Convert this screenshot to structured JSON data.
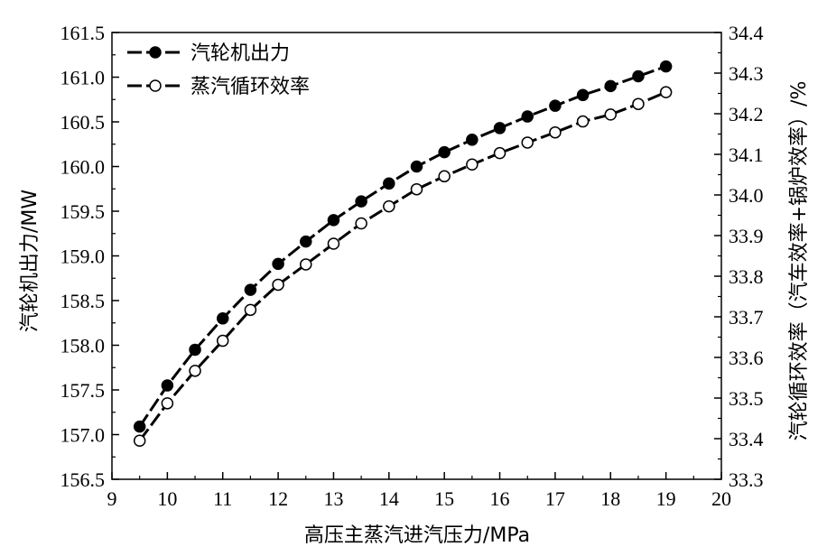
{
  "chart_data": {
    "type": "line",
    "xlabel": "高压主蒸汽进汽压力/MPa",
    "ylabel_left": "汽轮机出力/MW",
    "ylabel_right": "汽轮循环效率（汽车效率+锅炉效率）/%",
    "xlim": [
      9,
      20
    ],
    "ylim_left": [
      156.5,
      161.5
    ],
    "ylim_right": [
      33.3,
      34.4
    ],
    "x_ticks": [
      "9",
      "10",
      "11",
      "12",
      "13",
      "14",
      "15",
      "16",
      "17",
      "18",
      "19",
      "20"
    ],
    "y_left_ticks": [
      "156.5",
      "157.0",
      "157.5",
      "158.0",
      "158.5",
      "159.0",
      "159.5",
      "160.0",
      "160.5",
      "161.0",
      "161.5"
    ],
    "y_right_ticks": [
      "33.3",
      "33.4",
      "33.5",
      "33.6",
      "33.7",
      "33.8",
      "33.9",
      "34.0",
      "34.1",
      "34.2",
      "34.3",
      "34.4"
    ],
    "grid": false,
    "legend_position": "top-left",
    "x": [
      9.5,
      10,
      10.5,
      11,
      11.5,
      12,
      12.5,
      13,
      13.5,
      14,
      14.5,
      15,
      15.5,
      16,
      16.5,
      17,
      17.5,
      18,
      18.5,
      19
    ],
    "series": [
      {
        "name": "汽轮机出力",
        "axis": "left",
        "marker": "filled-circle",
        "values": [
          157.09,
          157.55,
          157.95,
          158.3,
          158.62,
          158.91,
          159.16,
          159.4,
          159.61,
          159.81,
          160.0,
          160.16,
          160.3,
          160.43,
          160.56,
          160.68,
          160.8,
          160.9,
          161.01,
          161.12
        ]
      },
      {
        "name": "蒸汽循环效率",
        "axis": "right",
        "marker": "open-circle",
        "values": [
          33.395,
          33.487,
          33.567,
          33.641,
          33.717,
          33.779,
          33.829,
          33.88,
          33.93,
          33.972,
          34.014,
          34.046,
          34.075,
          34.103,
          34.129,
          34.154,
          34.181,
          34.198,
          34.224,
          34.253
        ]
      }
    ]
  }
}
